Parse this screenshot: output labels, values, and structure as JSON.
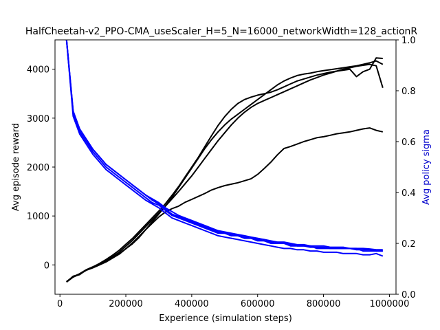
{
  "chart_data": {
    "type": "line",
    "title": "HalfCheetah-v2_PPO-CMA_useScaler_H=5_N=16000_networkWidth=128_actionR",
    "xlabel": "Experience (simulation steps)",
    "ylabel": "Avg episode reward",
    "y2label": "Avg policy sigma",
    "xlim": [
      -15000,
      1020000
    ],
    "ylim": [
      -600,
      4600
    ],
    "y2lim": [
      0,
      1.0
    ],
    "x_ticks": [
      0,
      200000,
      400000,
      600000,
      800000,
      1000000
    ],
    "x_tick_labels": [
      "0",
      "200000",
      "400000",
      "600000",
      "800000",
      "1000000"
    ],
    "y_ticks": [
      0,
      1000,
      2000,
      3000,
      4000
    ],
    "y_tick_labels": [
      "0",
      "1000",
      "2000",
      "3000",
      "4000"
    ],
    "y2_ticks": [
      0.0,
      0.2,
      0.4,
      0.6,
      0.8,
      1.0
    ],
    "y2_tick_labels": [
      "0.0",
      "0.2",
      "0.4",
      "0.6",
      "0.8",
      "1.0"
    ],
    "grid": false,
    "colors": {
      "reward": "#000000",
      "sigma": "#0000ff",
      "ylabel2": "#0000cc"
    },
    "x": [
      20000,
      40000,
      60000,
      80000,
      100000,
      120000,
      140000,
      160000,
      180000,
      200000,
      220000,
      240000,
      260000,
      280000,
      300000,
      320000,
      340000,
      360000,
      380000,
      400000,
      420000,
      440000,
      460000,
      480000,
      500000,
      520000,
      540000,
      560000,
      580000,
      600000,
      620000,
      640000,
      660000,
      680000,
      700000,
      720000,
      740000,
      760000,
      780000,
      800000,
      820000,
      840000,
      860000,
      880000,
      900000,
      920000,
      940000,
      960000,
      980000
    ],
    "series": [
      {
        "axis": "left",
        "values": [
          -350,
          -230,
          -200,
          -100,
          -50,
          10,
          80,
          150,
          230,
          330,
          450,
          580,
          720,
          850,
          980,
          1080,
          1150,
          1200,
          1280,
          1340,
          1400,
          1460,
          1530,
          1580,
          1620,
          1650,
          1680,
          1720,
          1760,
          1850,
          1970,
          2100,
          2250,
          2380,
          2420,
          2470,
          2520,
          2560,
          2600,
          2620,
          2650,
          2680,
          2700,
          2720,
          2750,
          2780,
          2800,
          2750,
          2720
        ]
      },
      {
        "axis": "left",
        "values": [
          -350,
          -250,
          -190,
          -110,
          -60,
          0,
          60,
          140,
          220,
          330,
          430,
          560,
          720,
          880,
          1040,
          1200,
          1380,
          1580,
          1780,
          1980,
          2180,
          2380,
          2560,
          2720,
          2860,
          2980,
          3080,
          3180,
          3280,
          3380,
          3480,
          3580,
          3680,
          3760,
          3820,
          3870,
          3900,
          3920,
          3950,
          3970,
          3990,
          4010,
          4030,
          4050,
          4070,
          4100,
          4130,
          4170,
          4100
        ]
      },
      {
        "axis": "left",
        "values": [
          -340,
          -240,
          -180,
          -100,
          -40,
          20,
          90,
          170,
          260,
          380,
          500,
          640,
          780,
          920,
          1060,
          1200,
          1350,
          1500,
          1660,
          1820,
          2000,
          2180,
          2360,
          2540,
          2700,
          2860,
          3000,
          3120,
          3220,
          3300,
          3360,
          3420,
          3480,
          3540,
          3600,
          3660,
          3720,
          3780,
          3830,
          3880,
          3920,
          3960,
          4000,
          4030,
          4060,
          4080,
          4100,
          4070,
          3620
        ]
      },
      {
        "axis": "left",
        "values": [
          -350,
          -240,
          -190,
          -100,
          -40,
          30,
          110,
          200,
          300,
          420,
          540,
          680,
          820,
          960,
          1100,
          1250,
          1420,
          1600,
          1800,
          2000,
          2200,
          2420,
          2640,
          2850,
          3030,
          3180,
          3300,
          3380,
          3430,
          3470,
          3500,
          3530,
          3580,
          3640,
          3700,
          3760,
          3800,
          3840,
          3880,
          3910,
          3940,
          3960,
          3980,
          4000,
          3850,
          3950,
          4000,
          4230,
          4220
        ]
      },
      {
        "axis": "right",
        "values": [
          1.0,
          0.72,
          0.64,
          0.6,
          0.56,
          0.53,
          0.5,
          0.48,
          0.46,
          0.44,
          0.42,
          0.4,
          0.38,
          0.36,
          0.35,
          0.33,
          0.31,
          0.3,
          0.29,
          0.28,
          0.27,
          0.26,
          0.25,
          0.24,
          0.24,
          0.23,
          0.23,
          0.22,
          0.22,
          0.21,
          0.21,
          0.2,
          0.2,
          0.2,
          0.19,
          0.19,
          0.19,
          0.19,
          0.18,
          0.18,
          0.18,
          0.18,
          0.18,
          0.18,
          0.18,
          0.17,
          0.17,
          0.17,
          0.17
        ]
      },
      {
        "axis": "right",
        "values": [
          1.0,
          0.71,
          0.64,
          0.6,
          0.57,
          0.54,
          0.51,
          0.49,
          0.47,
          0.45,
          0.43,
          0.41,
          0.39,
          0.37,
          0.355,
          0.335,
          0.315,
          0.305,
          0.295,
          0.285,
          0.275,
          0.265,
          0.255,
          0.245,
          0.24,
          0.235,
          0.23,
          0.225,
          0.22,
          0.215,
          0.21,
          0.205,
          0.2,
          0.2,
          0.195,
          0.19,
          0.19,
          0.185,
          0.185,
          0.185,
          0.18,
          0.18,
          0.18,
          0.18,
          0.175,
          0.175,
          0.175,
          0.17,
          0.17
        ]
      },
      {
        "axis": "right",
        "values": [
          1.0,
          0.72,
          0.65,
          0.61,
          0.57,
          0.54,
          0.51,
          0.49,
          0.47,
          0.45,
          0.43,
          0.41,
          0.39,
          0.375,
          0.36,
          0.34,
          0.325,
          0.31,
          0.3,
          0.29,
          0.28,
          0.27,
          0.26,
          0.25,
          0.245,
          0.24,
          0.235,
          0.23,
          0.225,
          0.22,
          0.215,
          0.21,
          0.205,
          0.205,
          0.2,
          0.195,
          0.195,
          0.19,
          0.19,
          0.19,
          0.185,
          0.185,
          0.185,
          0.18,
          0.18,
          0.18,
          0.178,
          0.175,
          0.175
        ]
      },
      {
        "axis": "right",
        "values": [
          1.0,
          0.7,
          0.63,
          0.59,
          0.55,
          0.52,
          0.49,
          0.47,
          0.45,
          0.43,
          0.41,
          0.39,
          0.37,
          0.355,
          0.34,
          0.32,
          0.3,
          0.29,
          0.28,
          0.27,
          0.26,
          0.25,
          0.24,
          0.23,
          0.225,
          0.22,
          0.215,
          0.21,
          0.205,
          0.2,
          0.195,
          0.19,
          0.185,
          0.18,
          0.18,
          0.175,
          0.175,
          0.17,
          0.17,
          0.165,
          0.165,
          0.165,
          0.16,
          0.16,
          0.16,
          0.155,
          0.155,
          0.16,
          0.15
        ]
      }
    ]
  }
}
